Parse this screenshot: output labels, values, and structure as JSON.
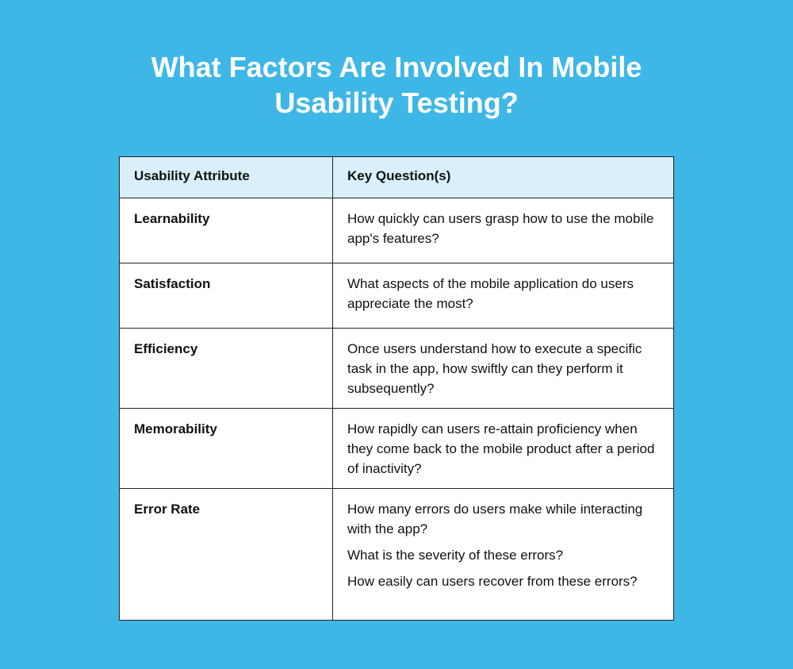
{
  "title": "What Factors Are Involved In Mobile Usability Testing?",
  "table": {
    "headers": [
      "Usability Attribute",
      "Key Question(s)"
    ],
    "rows": [
      {
        "attribute": "Learnability",
        "questions": [
          "How quickly can users grasp how to use the mobile app's features?"
        ]
      },
      {
        "attribute": "Satisfaction",
        "questions": [
          "What aspects of the mobile application do users appreciate the most?"
        ]
      },
      {
        "attribute": "Efficiency",
        "questions": [
          "Once users understand how to execute a specific task in the app, how swiftly can they perform it subsequently?"
        ]
      },
      {
        "attribute": "Memorability",
        "questions": [
          "How rapidly can users re-attain proficiency when they come back to the mobile product after a period of inactivity?"
        ]
      },
      {
        "attribute": "Error Rate",
        "questions": [
          "How many errors do users make while interacting with the app?",
          "What is the severity of these errors?",
          "How easily can users recover from these errors?"
        ]
      }
    ]
  },
  "colors": {
    "background": "#3eb7e7",
    "header_bg": "#d9f0fa"
  }
}
